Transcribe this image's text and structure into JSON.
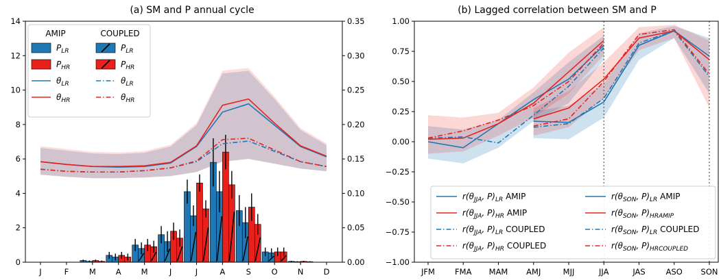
{
  "colors": {
    "lr": "#1f77b4",
    "hr": "#e8211d"
  },
  "chart_data": [
    {
      "type": "bar+line",
      "title": "(a) SM and P annual cycle",
      "xlabel": "",
      "ylabel": "",
      "y2label": "",
      "categories": [
        "J",
        "F",
        "M",
        "A",
        "M",
        "J",
        "J",
        "A",
        "S",
        "O",
        "N",
        "D"
      ],
      "ylim": [
        0,
        14
      ],
      "yticks": [
        "0",
        "2",
        "4",
        "6",
        "8",
        "10",
        "12",
        "14"
      ],
      "y2lim": [
        0,
        0.35
      ],
      "y2ticks": [
        "0.00",
        "0.05",
        "0.10",
        "0.15",
        "0.20",
        "0.25",
        "0.30",
        "0.35"
      ],
      "legend_group_titles": [
        "AMIP",
        "COUPLED"
      ],
      "legend_amip": [
        "P_{LR}",
        "P_{HR}",
        "θ_{LR}",
        "θ_{HR}"
      ],
      "legend_coupled": [
        "P_{LR}",
        "P_{HR}",
        "θ_{LR}",
        "θ_{HR}"
      ],
      "bars": {
        "amip_lr": [
          0,
          0,
          0.1,
          0.4,
          1.0,
          1.6,
          4.1,
          5.8,
          3.0,
          0.6,
          0.05,
          0
        ],
        "amip_hr": [
          0,
          0,
          0.1,
          0.4,
          1.0,
          1.8,
          4.6,
          6.4,
          3.2,
          0.6,
          0.05,
          0
        ],
        "coupled_lr": [
          0,
          0,
          0.05,
          0.3,
          0.8,
          1.2,
          2.7,
          4.1,
          2.3,
          0.55,
          0.03,
          0
        ],
        "coupled_hr": [
          0,
          0,
          0.05,
          0.3,
          0.9,
          1.4,
          3.1,
          4.5,
          2.2,
          0.6,
          0.03,
          0
        ],
        "err_amip_lr": [
          0,
          0,
          0.05,
          0.2,
          0.35,
          0.5,
          0.7,
          1.4,
          0.9,
          0.25,
          0.03,
          0
        ],
        "err_amip_hr": [
          0,
          0,
          0.05,
          0.2,
          0.35,
          0.5,
          0.5,
          1.0,
          0.8,
          0.25,
          0.03,
          0
        ],
        "err_coupled_lr": [
          0,
          0,
          0.05,
          0.2,
          0.35,
          0.6,
          0.6,
          1.2,
          0.9,
          0.25,
          0.03,
          0
        ],
        "err_coupled_hr": [
          0,
          0,
          0.05,
          0.2,
          0.35,
          0.5,
          0.5,
          0.8,
          0.6,
          0.25,
          0.03,
          0
        ]
      },
      "theta": {
        "amip_lr": [
          0.146,
          0.142,
          0.139,
          0.138,
          0.139,
          0.144,
          0.168,
          0.218,
          0.23,
          0.199,
          0.168,
          0.153
        ],
        "amip_hr": [
          0.146,
          0.142,
          0.139,
          0.139,
          0.14,
          0.145,
          0.169,
          0.228,
          0.237,
          0.202,
          0.169,
          0.154
        ],
        "coupled_lr": [
          0.135,
          0.132,
          0.131,
          0.131,
          0.133,
          0.137,
          0.146,
          0.172,
          0.176,
          0.161,
          0.146,
          0.139
        ],
        "coupled_hr": [
          0.135,
          0.132,
          0.131,
          0.131,
          0.133,
          0.137,
          0.147,
          0.178,
          0.18,
          0.163,
          0.146,
          0.139
        ],
        "band_lo": [
          0.127,
          0.124,
          0.122,
          0.122,
          0.123,
          0.125,
          0.131,
          0.146,
          0.15,
          0.143,
          0.136,
          0.132
        ],
        "band_hi": [
          0.166,
          0.162,
          0.158,
          0.157,
          0.159,
          0.168,
          0.199,
          0.274,
          0.278,
          0.237,
          0.192,
          0.17
        ]
      }
    },
    {
      "type": "line",
      "title": "(b) Lagged correlation between SM and P",
      "xlabel": "",
      "ylabel": "",
      "categories": [
        "JFM",
        "FMA",
        "MAM",
        "AMJ",
        "MJJ",
        "JJA",
        "JAS",
        "ASO",
        "SON"
      ],
      "ylim": [
        -1.0,
        1.0
      ],
      "yticks": [
        "−1.00",
        "−0.75",
        "−0.50",
        "−0.25",
        "0.00",
        "0.25",
        "0.50",
        "0.75",
        "1.00"
      ],
      "vlines_at": [
        "JJA",
        "SON"
      ],
      "legend": [
        {
          "pre": "r(θ",
          "sub1": "JJA",
          "mid": ", P)",
          "sub2": "LR",
          "post": " AMIP"
        },
        {
          "pre": "r(θ",
          "sub1": "JJA",
          "mid": ", P)",
          "sub2": "HR",
          "post": " AMIP"
        },
        {
          "pre": "r(θ",
          "sub1": "JJA",
          "mid": ", P)",
          "sub2": "LR",
          "post": " COUPLED"
        },
        {
          "pre": "r(θ",
          "sub1": "JJA",
          "mid": ", P)",
          "sub2": "HR",
          "post": " COUPLED"
        },
        {
          "pre": "r(θ",
          "sub1": "SON",
          "mid": ", P)",
          "sub2": "LR",
          "post": " AMIP"
        },
        {
          "pre": "r(θ",
          "sub1": "SON",
          "mid": ", P)",
          "sub2": "HRAMIP",
          "post": ""
        },
        {
          "pre": "r(θ",
          "sub1": "SON",
          "mid": ", P)",
          "sub2": "LR",
          "post": " COUPLED"
        },
        {
          "pre": "r(θ",
          "sub1": "SON",
          "mid": ", P)",
          "sub2": "HRCOUPLED",
          "post": ""
        }
      ],
      "jja_series": {
        "amip_lr": [
          0.0,
          -0.05,
          0.15,
          0.35,
          0.52,
          0.8
        ],
        "amip_hr": [
          0.02,
          0.03,
          0.15,
          0.32,
          0.58,
          0.84
        ],
        "coupled_lr": [
          0.03,
          0.04,
          -0.01,
          0.22,
          0.46,
          0.78
        ],
        "coupled_hr": [
          0.03,
          0.09,
          0.18,
          0.3,
          0.5,
          0.82
        ]
      },
      "son_series": {
        "amip_lr": [
          0.17,
          0.16,
          0.33,
          0.8,
          0.92,
          0.71
        ],
        "amip_hr": [
          0.19,
          0.28,
          0.52,
          0.86,
          0.92,
          0.68
        ],
        "coupled_lr": [
          0.12,
          0.15,
          0.36,
          0.82,
          0.92,
          0.54
        ],
        "coupled_hr": [
          0.13,
          0.19,
          0.5,
          0.89,
          0.93,
          0.56
        ]
      },
      "bands": {
        "jja_lr_lo": [
          -0.14,
          -0.18,
          -0.05,
          0.17,
          0.32,
          0.68
        ],
        "jja_lr_hi": [
          0.13,
          0.1,
          0.18,
          0.41,
          0.66,
          0.88
        ],
        "jja_hr_lo": [
          -0.1,
          -0.08,
          0.05,
          0.2,
          0.4,
          0.72
        ],
        "jja_hr_hi": [
          0.22,
          0.2,
          0.24,
          0.45,
          0.74,
          0.95
        ],
        "son_lr_lo": [
          0.03,
          0.02,
          0.2,
          0.68,
          0.86,
          0.4
        ],
        "son_lr_hi": [
          0.25,
          0.3,
          0.48,
          0.9,
          0.96,
          0.86
        ],
        "son_hr_lo": [
          0.05,
          0.12,
          0.36,
          0.76,
          0.86,
          0.28
        ],
        "son_hr_hi": [
          0.28,
          0.42,
          0.66,
          0.95,
          0.97,
          0.84
        ]
      }
    }
  ]
}
